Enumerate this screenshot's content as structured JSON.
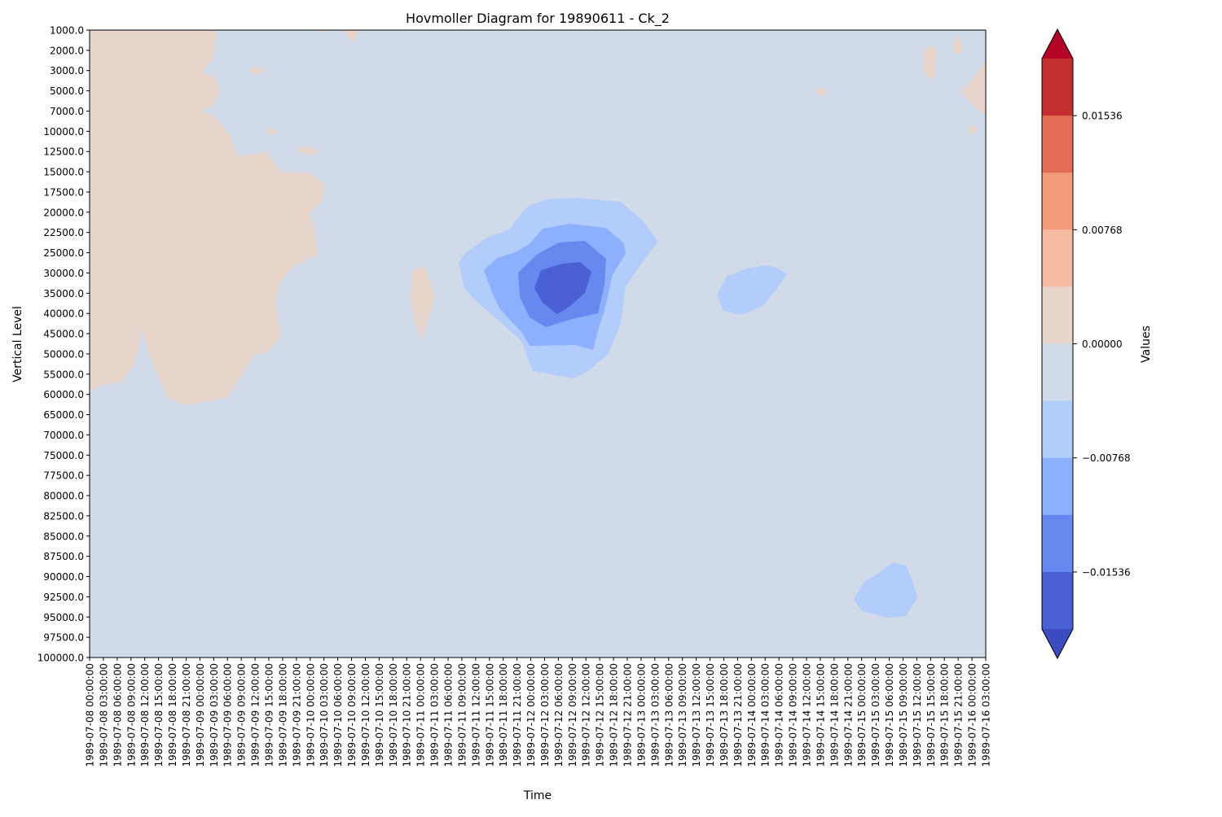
{
  "chart_data": {
    "type": "heatmap",
    "subtype": "filled-contour",
    "title": "Hovmoller Diagram for 19890611 - Ck_2",
    "xlabel": "Time",
    "ylabel": "Vertical Level",
    "colorbar_label": "Values",
    "y_axis_inverted": true,
    "y_levels": [
      "1000.0",
      "2000.0",
      "3000.0",
      "5000.0",
      "7000.0",
      "10000.0",
      "12500.0",
      "15000.0",
      "17500.0",
      "20000.0",
      "22500.0",
      "25000.0",
      "30000.0",
      "35000.0",
      "40000.0",
      "45000.0",
      "50000.0",
      "55000.0",
      "60000.0",
      "65000.0",
      "70000.0",
      "75000.0",
      "77500.0",
      "80000.0",
      "82500.0",
      "85000.0",
      "87500.0",
      "90000.0",
      "92500.0",
      "95000.0",
      "97500.0",
      "100000.0"
    ],
    "x_ticks": [
      "1989-07-08 00:00:00",
      "1989-07-08 03:00:00",
      "1989-07-08 06:00:00",
      "1989-07-08 09:00:00",
      "1989-07-08 12:00:00",
      "1989-07-08 15:00:00",
      "1989-07-08 18:00:00",
      "1989-07-08 21:00:00",
      "1989-07-09 00:00:00",
      "1989-07-09 03:00:00",
      "1989-07-09 06:00:00",
      "1989-07-09 09:00:00",
      "1989-07-09 12:00:00",
      "1989-07-09 15:00:00",
      "1989-07-09 18:00:00",
      "1989-07-09 21:00:00",
      "1989-07-10 00:00:00",
      "1989-07-10 03:00:00",
      "1989-07-10 06:00:00",
      "1989-07-10 09:00:00",
      "1989-07-10 12:00:00",
      "1989-07-10 15:00:00",
      "1989-07-10 18:00:00",
      "1989-07-10 21:00:00",
      "1989-07-11 00:00:00",
      "1989-07-11 03:00:00",
      "1989-07-11 06:00:00",
      "1989-07-11 09:00:00",
      "1989-07-11 12:00:00",
      "1989-07-11 15:00:00",
      "1989-07-11 18:00:00",
      "1989-07-11 21:00:00",
      "1989-07-12 00:00:00",
      "1989-07-12 03:00:00",
      "1989-07-12 06:00:00",
      "1989-07-12 09:00:00",
      "1989-07-12 12:00:00",
      "1989-07-12 15:00:00",
      "1989-07-12 18:00:00",
      "1989-07-12 21:00:00",
      "1989-07-13 00:00:00",
      "1989-07-13 03:00:00",
      "1989-07-13 06:00:00",
      "1989-07-13 09:00:00",
      "1989-07-13 12:00:00",
      "1989-07-13 15:00:00",
      "1989-07-13 18:00:00",
      "1989-07-13 21:00:00",
      "1989-07-14 00:00:00",
      "1989-07-14 03:00:00",
      "1989-07-14 06:00:00",
      "1989-07-14 09:00:00",
      "1989-07-14 12:00:00",
      "1989-07-14 15:00:00",
      "1989-07-14 18:00:00",
      "1989-07-14 21:00:00",
      "1989-07-15 00:00:00",
      "1989-07-15 03:00:00",
      "1989-07-15 06:00:00",
      "1989-07-15 09:00:00",
      "1989-07-15 12:00:00",
      "1989-07-15 15:00:00",
      "1989-07-15 18:00:00",
      "1989-07-15 21:00:00",
      "1989-07-16 00:00:00",
      "1989-07-16 03:00:00"
    ],
    "colorbar": {
      "ticks": [
        "0.01536",
        "0.00768",
        "0.00000",
        "−0.00768",
        "−0.01536"
      ],
      "tick_values": [
        0.01536,
        0.00768,
        0.0,
        -0.00768,
        -0.01536
      ],
      "levels": [
        -0.02304,
        -0.0192,
        -0.01536,
        -0.01152,
        -0.00768,
        -0.00384,
        0.0,
        0.00384,
        0.00768,
        0.01152,
        0.01536,
        0.0192,
        0.02304
      ],
      "extend": "both",
      "colors": [
        "#4961d2",
        "#6788ee",
        "#8db0fe",
        "#b2ccfb",
        "#d0dae8",
        "#e8d6cc",
        "#f6bda2",
        "#f49a7b",
        "#e36c55",
        "#c32e31"
      ],
      "under_color": "#3b4cc0",
      "over_color": "#b40426",
      "background_color": "#d0dae8"
    },
    "features": [
      {
        "name": "positive-region-west",
        "sign": "positive",
        "level_index": 5,
        "time_range": [
          "1989-07-08 00:00:00",
          "1989-07-10 03:00:00"
        ],
        "level_range": [
          "1000.0",
          "60000.0"
        ]
      },
      {
        "name": "negative-core",
        "sign": "negative",
        "peak_time": "1989-07-12 06:00:00",
        "peak_level": "35000.0",
        "level_range": [
          "20000.0",
          "55000.0"
        ],
        "min_value_band": [
          -0.0192,
          -0.01536
        ]
      },
      {
        "name": "negative-upper-east",
        "sign": "negative",
        "level_index": 3,
        "time_range": [
          "1989-07-13 18:00:00",
          "1989-07-14 03:00:00"
        ],
        "level_range": [
          "30000.0",
          "40000.0"
        ]
      },
      {
        "name": "negative-lower-east",
        "sign": "negative",
        "level_index": 3,
        "time_range": [
          "1989-07-15 00:00:00",
          "1989-07-15 12:00:00"
        ],
        "level_range": [
          "90000.0",
          "95000.0"
        ]
      },
      {
        "name": "positive-upper-east",
        "sign": "positive",
        "level_index": 5,
        "time_range": [
          "1989-07-15 21:00:00",
          "1989-07-16 03:00:00"
        ],
        "level_range": [
          "2000.0",
          "10000.0"
        ]
      }
    ]
  }
}
